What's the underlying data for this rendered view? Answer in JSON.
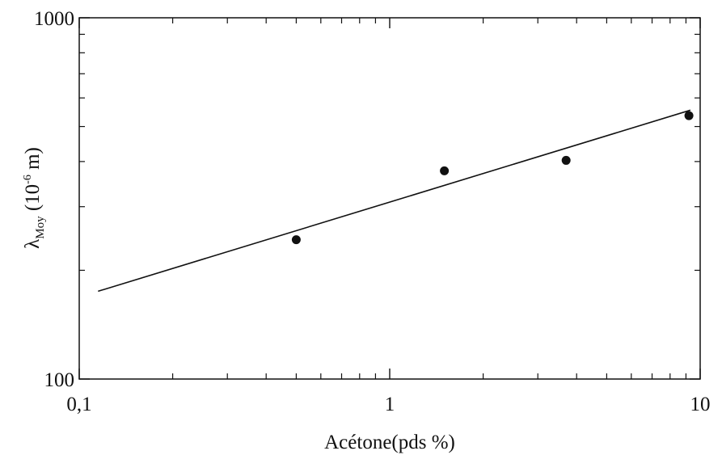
{
  "chart_data": {
    "type": "scatter",
    "xscale": "log",
    "yscale": "log",
    "xlim": [
      0.1,
      10
    ],
    "ylim": [
      100,
      1000
    ],
    "xlabel": "Acétone(pds %)",
    "ylabel": {
      "symbol": "λ",
      "subscript": "Moy",
      "unit_open": " (10",
      "unit_exp": "-6",
      "unit_close": " m)"
    },
    "x_tick_labels": [
      "0,1",
      "1",
      "10"
    ],
    "y_tick_labels": [
      "100",
      "1000"
    ],
    "series": [
      {
        "kind": "points",
        "x": [
          0.5,
          1.5,
          3.7,
          9.2
        ],
        "y": [
          243,
          377,
          403,
          536
        ]
      },
      {
        "kind": "fit-line",
        "x": [
          0.115,
          9.3
        ],
        "y": [
          175,
          555
        ]
      }
    ],
    "grid": false,
    "colors": {
      "marks": "#111111",
      "background": "#ffffff"
    }
  }
}
